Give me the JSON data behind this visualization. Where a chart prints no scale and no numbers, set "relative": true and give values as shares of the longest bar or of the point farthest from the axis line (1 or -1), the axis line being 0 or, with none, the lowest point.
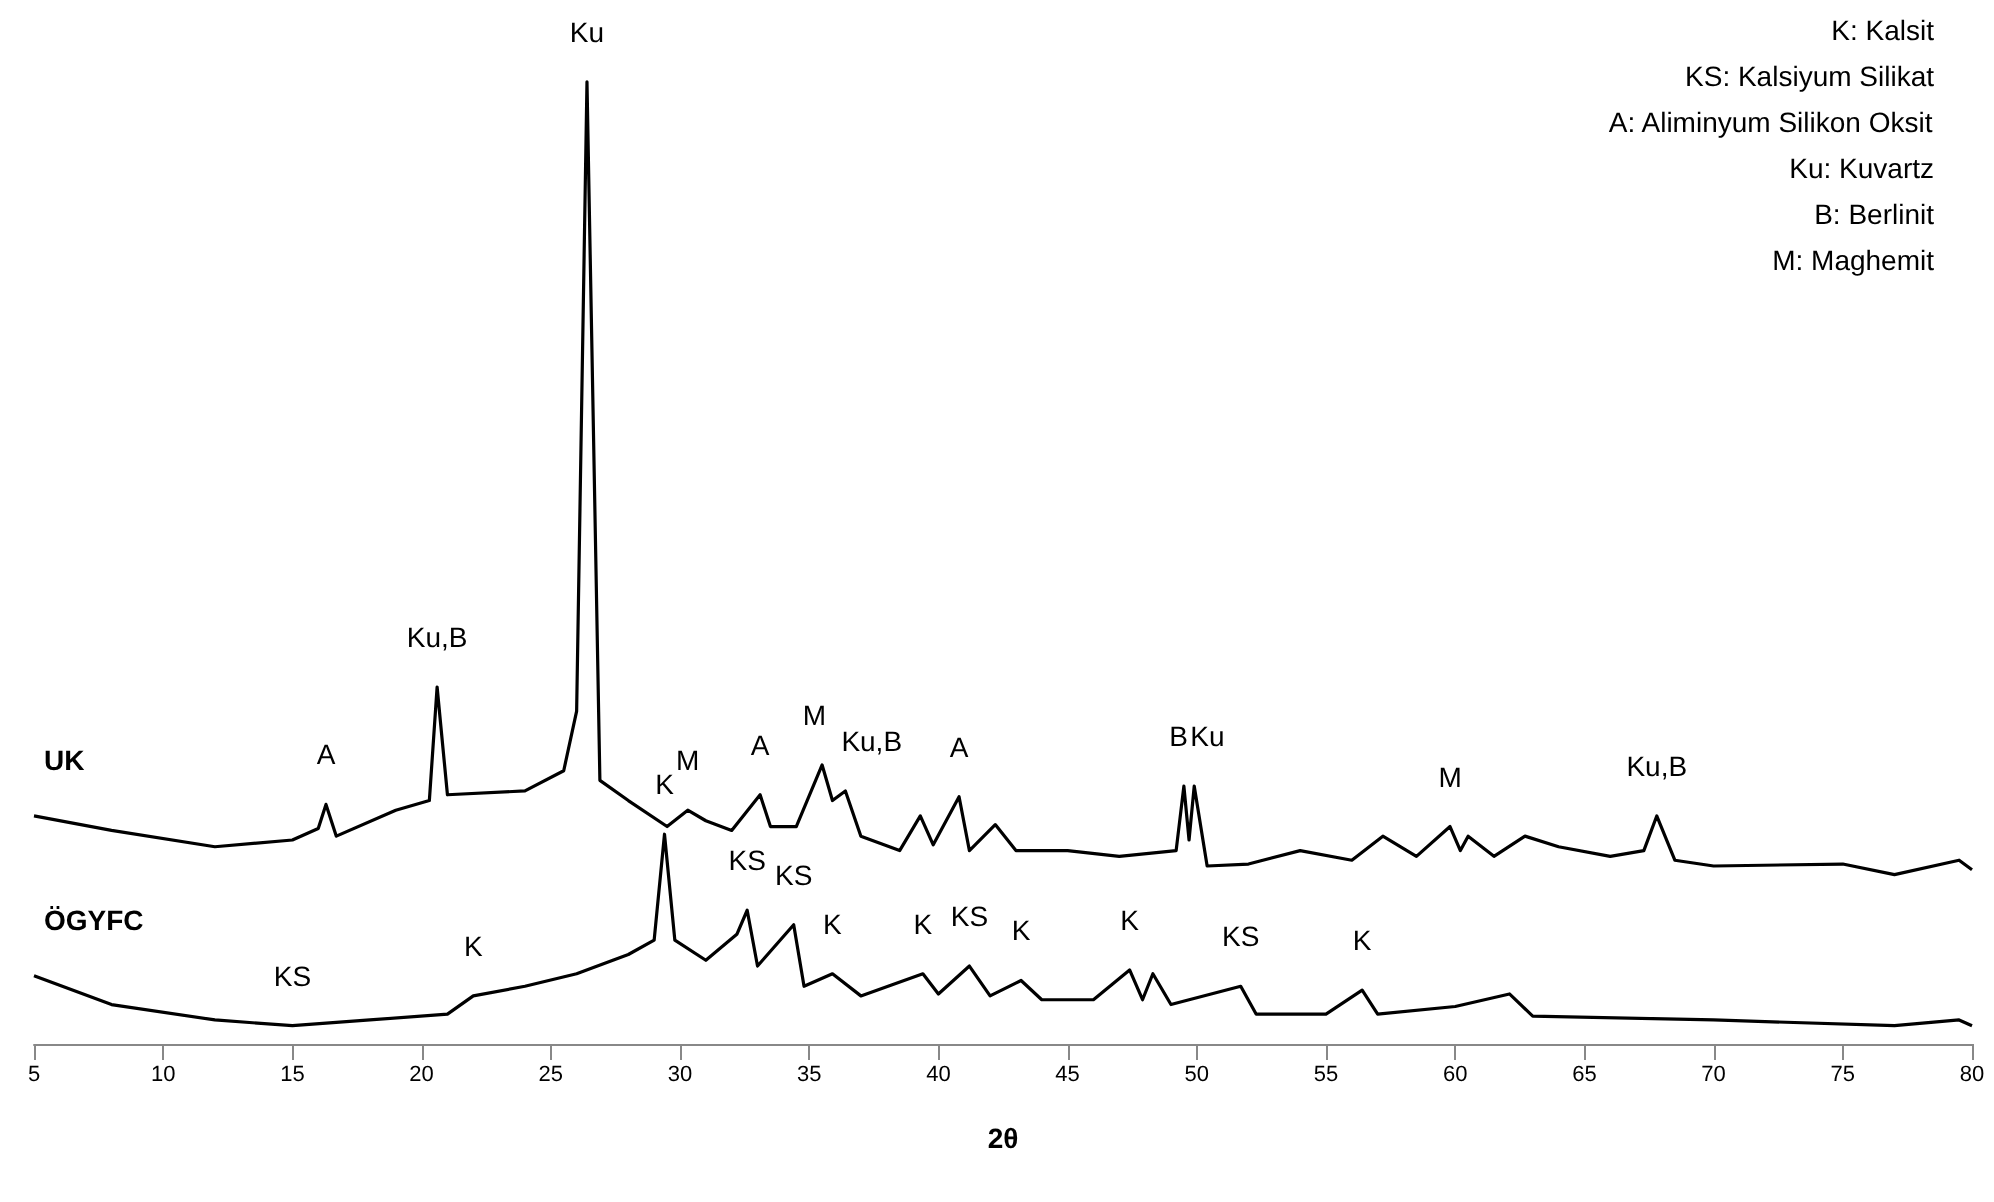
{
  "chart_data": {
    "type": "line",
    "relative": true,
    "xlabel": "2θ",
    "xlim": [
      5,
      80
    ],
    "xticks": [
      5,
      10,
      15,
      20,
      25,
      30,
      35,
      40,
      45,
      50,
      55,
      60,
      65,
      70,
      75,
      80
    ],
    "grid": false,
    "legend": false,
    "marker": "none",
    "line_style": "solid",
    "series": [
      {
        "name": "UK",
        "color": "#000000",
        "x": [
          5,
          8,
          12,
          15,
          16,
          16.3,
          16.7,
          19,
          20.3,
          20.6,
          21,
          24,
          25.5,
          26,
          26.4,
          26.9,
          28,
          29.5,
          30.3,
          31,
          32,
          33.1,
          33.5,
          34.5,
          35.5,
          35.9,
          36.4,
          37,
          38.5,
          39.3,
          39.8,
          40.8,
          41.2,
          42.2,
          43,
          45,
          47,
          49.2,
          49.5,
          49.7,
          49.9,
          50.4,
          52,
          54,
          56,
          57.2,
          58.5,
          59.8,
          60.2,
          60.5,
          61.5,
          62.7,
          64,
          66,
          67.3,
          67.8,
          68.5,
          70,
          75,
          77,
          79.5,
          80
        ],
        "values": [
          0.237,
          0.222,
          0.205,
          0.212,
          0.224,
          0.249,
          0.216,
          0.243,
          0.253,
          0.371,
          0.259,
          0.263,
          0.284,
          0.346,
          1,
          0.274,
          0.253,
          0.226,
          0.243,
          0.232,
          0.222,
          0.259,
          0.226,
          0.226,
          0.29,
          0.253,
          0.263,
          0.216,
          0.201,
          0.237,
          0.207,
          0.257,
          0.201,
          0.228,
          0.201,
          0.201,
          0.195,
          0.201,
          0.268,
          0.212,
          0.268,
          0.185,
          0.187,
          0.201,
          0.191,
          0.216,
          0.195,
          0.226,
          0.201,
          0.216,
          0.195,
          0.216,
          0.205,
          0.195,
          0.201,
          0.237,
          0.191,
          0.185,
          0.187,
          0.176,
          0.191,
          0.181
        ]
      },
      {
        "name": "ÖGYFC",
        "color": "#000000",
        "x": [
          5,
          8,
          12,
          15,
          18,
          21,
          22,
          24,
          26,
          28,
          29,
          29.4,
          29.8,
          31,
          32.2,
          32.6,
          33,
          34.4,
          34.8,
          35.9,
          37,
          39.4,
          40,
          41.2,
          42,
          43.2,
          44,
          46,
          47.4,
          47.9,
          48.3,
          49,
          51.7,
          52.3,
          55,
          56.4,
          57,
          60,
          62.1,
          63,
          70,
          77,
          79.5,
          80
        ],
        "values": [
          0.071,
          0.041,
          0.025,
          0.019,
          0.025,
          0.031,
          0.05,
          0.06,
          0.073,
          0.093,
          0.108,
          0.218,
          0.108,
          0.087,
          0.114,
          0.139,
          0.081,
          0.124,
          0.06,
          0.073,
          0.05,
          0.073,
          0.052,
          0.081,
          0.05,
          0.066,
          0.046,
          0.046,
          0.077,
          0.046,
          0.073,
          0.041,
          0.06,
          0.031,
          0.031,
          0.056,
          0.031,
          0.039,
          0.052,
          0.029,
          0.025,
          0.019,
          0.025,
          0.019
        ]
      }
    ],
    "annotations": [
      "K: Kalsit",
      "KS: Kalsiyum Silikat",
      "A: Aliminyum Silikon Oksit",
      "Ku: Kuvartz",
      "B: Berlinit",
      "M: Maghemit",
      {
        "text": "A",
        "x": 16.3,
        "y": 0.249
      },
      {
        "text": "Ku,B",
        "x": 20.6,
        "y": 0.371
      },
      {
        "text": "Ku",
        "x": 26.4,
        "y": 1
      },
      {
        "text": "M",
        "x": 30.3,
        "y": 0.243
      },
      {
        "text": "A",
        "x": 33.1,
        "y": 0.259
      },
      {
        "text": "M",
        "x": 35.5,
        "y": 0.29
      },
      {
        "text": "Ku,B",
        "x": 36.4,
        "y": 0.263
      },
      {
        "text": "A",
        "x": 40.8,
        "y": 0.257
      },
      {
        "text": "B",
        "x": 49.5,
        "y": 0.268
      },
      {
        "text": "Ku",
        "x": 49.9,
        "y": 0.268
      },
      {
        "text": "M",
        "x": 59.8,
        "y": 0.226
      },
      {
        "text": "Ku,B",
        "x": 67.8,
        "y": 0.237
      },
      {
        "text": "KS",
        "x": 15,
        "y": 0.019
      },
      {
        "text": "K",
        "x": 22,
        "y": 0.05
      },
      {
        "text": "K",
        "x": 29.4,
        "y": 0.218
      },
      {
        "text": "KS",
        "x": 32.6,
        "y": 0.139
      },
      {
        "text": "KS",
        "x": 34.4,
        "y": 0.124
      },
      {
        "text": "K",
        "x": 35.9,
        "y": 0.073
      },
      {
        "text": "K",
        "x": 39.4,
        "y": 0.073
      },
      {
        "text": "KS",
        "x": 41.2,
        "y": 0.081
      },
      {
        "text": "K",
        "x": 43.2,
        "y": 0.066
      },
      {
        "text": "K",
        "x": 47.4,
        "y": 0.077
      },
      {
        "text": "KS",
        "x": 51.7,
        "y": 0.06
      },
      {
        "text": "K",
        "x": 56.4,
        "y": 0.056
      }
    ]
  }
}
